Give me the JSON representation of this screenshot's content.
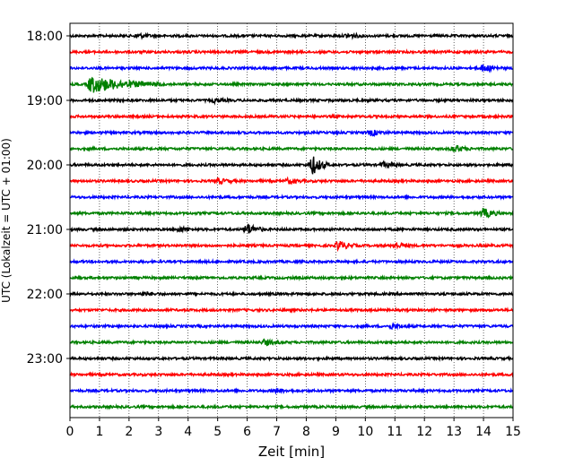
{
  "chart_data": {
    "type": "line",
    "subtype": "helicorder-seismogram",
    "xlabel": "Zeit  [min]",
    "ylabel": "UTC (Lokalzeit = UTC + 01:00)",
    "xlim": [
      0,
      15
    ],
    "x_ticks": [
      "0",
      "1",
      "2",
      "3",
      "4",
      "5",
      "6",
      "7",
      "8",
      "9",
      "10",
      "11",
      "12",
      "13",
      "14",
      "15"
    ],
    "y_ticks": [
      "18:00",
      "19:00",
      "20:00",
      "21:00",
      "22:00",
      "23:00"
    ],
    "grid": "vertical dotted lines at each minute",
    "trace_colors": [
      "#000000",
      "#ff0000",
      "#0000ff",
      "#008000"
    ],
    "traces": [
      {
        "start": "18:00",
        "color": "#000000",
        "bursts": [
          {
            "t": 2.3,
            "amp": 0.25
          },
          {
            "t": 9.4,
            "amp": 0.3
          }
        ]
      },
      {
        "start": "18:15",
        "color": "#ff0000",
        "bursts": []
      },
      {
        "start": "18:30",
        "color": "#0000ff",
        "bursts": [
          {
            "t": 14.0,
            "amp": 0.45
          }
        ]
      },
      {
        "start": "18:45",
        "color": "#008000",
        "bursts": [
          {
            "t": 0.7,
            "amp": 1.0,
            "dur": 2.5
          }
        ]
      },
      {
        "start": "19:00",
        "color": "#000000",
        "bursts": [
          {
            "t": 4.9,
            "amp": 0.2
          }
        ]
      },
      {
        "start": "19:15",
        "color": "#ff0000",
        "bursts": []
      },
      {
        "start": "19:30",
        "color": "#0000ff",
        "bursts": [
          {
            "t": 10.2,
            "amp": 0.35
          }
        ]
      },
      {
        "start": "19:45",
        "color": "#008000",
        "bursts": [
          {
            "t": 13.0,
            "amp": 0.45
          }
        ]
      },
      {
        "start": "20:00",
        "color": "#000000",
        "bursts": [
          {
            "t": 8.2,
            "amp": 1.2
          },
          {
            "t": 10.6,
            "amp": 0.3
          }
        ]
      },
      {
        "start": "20:15",
        "color": "#ff0000",
        "bursts": [
          {
            "t": 5.0,
            "amp": 0.3
          },
          {
            "t": 7.4,
            "amp": 0.3
          }
        ]
      },
      {
        "start": "20:30",
        "color": "#0000ff",
        "bursts": []
      },
      {
        "start": "20:45",
        "color": "#008000",
        "bursts": [
          {
            "t": 14.0,
            "amp": 0.6
          }
        ]
      },
      {
        "start": "21:00",
        "color": "#000000",
        "bursts": [
          {
            "t": 6.0,
            "amp": 0.7
          },
          {
            "t": 3.7,
            "amp": 0.3
          }
        ]
      },
      {
        "start": "21:15",
        "color": "#ff0000",
        "bursts": [
          {
            "t": 9.1,
            "amp": 0.6
          },
          {
            "t": 11.0,
            "amp": 0.3
          }
        ]
      },
      {
        "start": "21:30",
        "color": "#0000ff",
        "bursts": []
      },
      {
        "start": "21:45",
        "color": "#008000",
        "bursts": []
      },
      {
        "start": "22:00",
        "color": "#000000",
        "bursts": [
          {
            "t": 2.5,
            "amp": 0.2
          }
        ]
      },
      {
        "start": "22:15",
        "color": "#ff0000",
        "bursts": []
      },
      {
        "start": "22:30",
        "color": "#0000ff",
        "bursts": [
          {
            "t": 10.9,
            "amp": 0.3
          }
        ]
      },
      {
        "start": "22:45",
        "color": "#008000",
        "bursts": [
          {
            "t": 6.6,
            "amp": 0.35
          }
        ]
      },
      {
        "start": "23:00",
        "color": "#000000",
        "bursts": []
      },
      {
        "start": "23:15",
        "color": "#ff0000",
        "bursts": []
      },
      {
        "start": "23:30",
        "color": "#0000ff",
        "bursts": [
          {
            "t": 7.0,
            "amp": 0.2
          }
        ]
      },
      {
        "start": "23:45",
        "color": "#008000",
        "bursts": []
      }
    ]
  }
}
